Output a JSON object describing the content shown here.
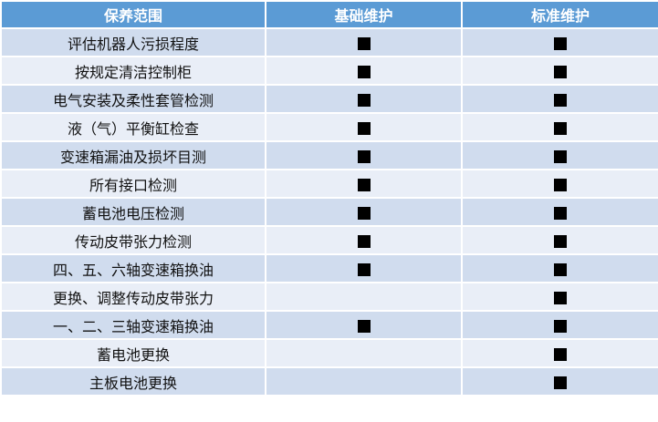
{
  "headers": [
    "保养范围",
    "基础维护",
    "标准维护"
  ],
  "rows": [
    {
      "item": "评估机器人污损程度",
      "basic": true,
      "standard": true
    },
    {
      "item": "按规定清洁控制柜",
      "basic": true,
      "standard": true
    },
    {
      "item": "电气安装及柔性套管检测",
      "basic": true,
      "standard": true
    },
    {
      "item": "液（气）平衡缸检查",
      "basic": true,
      "standard": true
    },
    {
      "item": "变速箱漏油及损坏目测",
      "basic": true,
      "standard": true
    },
    {
      "item": "所有接口检测",
      "basic": true,
      "standard": true
    },
    {
      "item": "蓄电池电压检测",
      "basic": true,
      "standard": true
    },
    {
      "item": "传动皮带张力检测",
      "basic": true,
      "standard": true
    },
    {
      "item": "四、五、六轴变速箱换油",
      "basic": true,
      "standard": true
    },
    {
      "item": "更换、调整传动皮带张力",
      "basic": false,
      "standard": true
    },
    {
      "item": "一、二、三轴变速箱换油",
      "basic": true,
      "standard": true
    },
    {
      "item": "蓄电池更换",
      "basic": false,
      "standard": true
    },
    {
      "item": "主板电池更换",
      "basic": false,
      "standard": true
    }
  ],
  "check_mark": "■",
  "colors": {
    "header": "#5B9BD5",
    "row_odd": "#D0DCEE",
    "row_even": "#E9EEF7"
  }
}
